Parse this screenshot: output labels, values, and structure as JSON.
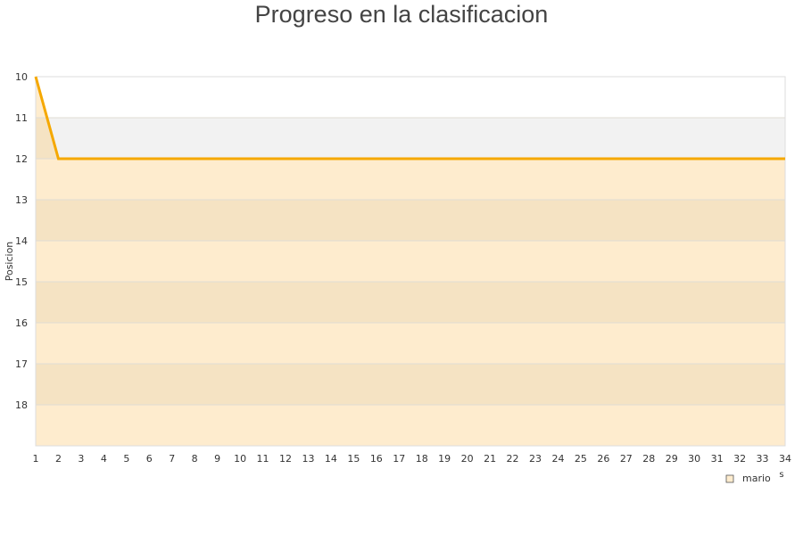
{
  "chart_data": {
    "type": "area",
    "title": "Progreso en la clasificacion",
    "ylabel": "Posicion",
    "xlabel": "s",
    "ylim": [
      19,
      10
    ],
    "y_inverted": true,
    "yticks": [
      10,
      11,
      12,
      13,
      14,
      15,
      16,
      17,
      18
    ],
    "x": [
      1,
      2,
      3,
      4,
      5,
      6,
      7,
      8,
      9,
      10,
      11,
      12,
      13,
      14,
      15,
      16,
      17,
      18,
      19,
      20,
      21,
      22,
      23,
      24,
      25,
      26,
      27,
      28,
      29,
      30,
      31,
      32,
      33,
      34
    ],
    "series": [
      {
        "name": "mario",
        "color": "#f5a800",
        "fill": "#feecce",
        "values": [
          10,
          12,
          12,
          12,
          12,
          12,
          12,
          12,
          12,
          12,
          12,
          12,
          12,
          12,
          12,
          12,
          12,
          12,
          12,
          12,
          12,
          12,
          12,
          12,
          12,
          12,
          12,
          12,
          12,
          12,
          12,
          12,
          12,
          12
        ]
      }
    ],
    "legend": "bottom-right",
    "grid": true
  }
}
